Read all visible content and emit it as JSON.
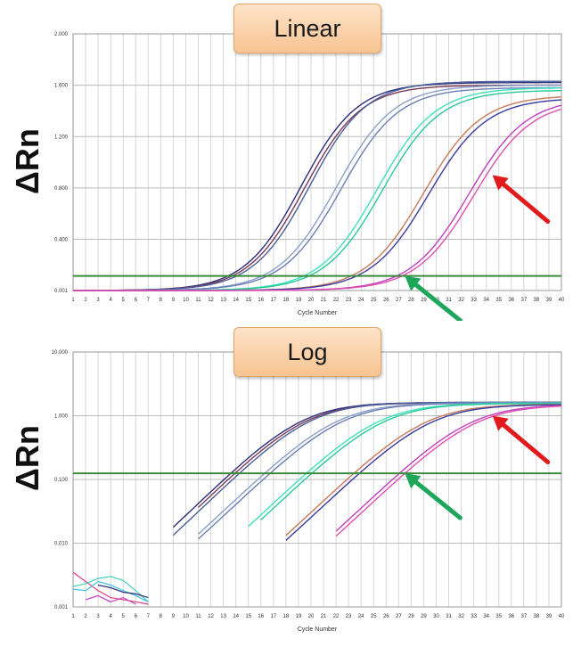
{
  "chart_data": [
    {
      "type": "line",
      "title": "Linear",
      "ylabel": "ΔRn",
      "xlabel": "Cycle Number",
      "yscale": "linear",
      "ylim": [
        0.001,
        2.0
      ],
      "xlim": [
        1,
        40
      ],
      "ytick_labels": [
        "0.001",
        "0.400",
        "0.800",
        "1.200",
        "1.600",
        "2.000"
      ],
      "ytick_values": [
        0.001,
        0.4,
        0.8,
        1.2,
        1.6,
        2.0
      ],
      "xticks": [
        1,
        2,
        3,
        4,
        5,
        6,
        7,
        8,
        9,
        10,
        11,
        12,
        13,
        14,
        15,
        16,
        17,
        18,
        19,
        20,
        21,
        22,
        23,
        24,
        25,
        26,
        27,
        28,
        29,
        30,
        31,
        32,
        33,
        34,
        35,
        36,
        37,
        38,
        39,
        40
      ],
      "grid": true,
      "threshold": 0.115,
      "annotations": [
        {
          "type": "arrow",
          "color": "#e11b1b",
          "target_cycle": 34.5,
          "target_value": 0.9
        },
        {
          "type": "arrow",
          "color": "#1ea65a",
          "target_cycle": 27.5,
          "target_value": 0.115
        }
      ],
      "series": [
        {
          "color": "#2b2f7a",
          "midpoint": 19.2,
          "max": 1.62,
          "slope": 2.25
        },
        {
          "color": "#7a3a55",
          "midpoint": 19.5,
          "max": 1.6,
          "slope": 2.25
        },
        {
          "color": "#4a5f9a",
          "midpoint": 19.9,
          "max": 1.63,
          "slope": 2.25
        },
        {
          "color": "#8aa0c8",
          "midpoint": 22.0,
          "max": 1.6,
          "slope": 2.3
        },
        {
          "color": "#6a7fb5",
          "midpoint": 22.4,
          "max": 1.58,
          "slope": 2.3
        },
        {
          "color": "#40e0c0",
          "midpoint": 25.3,
          "max": 1.58,
          "slope": 2.3
        },
        {
          "color": "#2bc99a",
          "midpoint": 25.7,
          "max": 1.56,
          "slope": 2.3
        },
        {
          "color": "#c87a5a",
          "midpoint": 29.0,
          "max": 1.52,
          "slope": 2.3
        },
        {
          "color": "#3a3aa0",
          "midpoint": 29.4,
          "max": 1.5,
          "slope": 2.3
        },
        {
          "color": "#c040c0",
          "midpoint": 32.6,
          "max": 1.5,
          "slope": 2.3
        },
        {
          "color": "#e050b0",
          "midpoint": 33.0,
          "max": 1.48,
          "slope": 2.3
        }
      ]
    },
    {
      "type": "line",
      "title": "Log",
      "ylabel": "ΔRn",
      "xlabel": "Cycle Number",
      "yscale": "log",
      "ylim": [
        0.001,
        10.0
      ],
      "xlim": [
        1,
        40
      ],
      "ytick_labels": [
        "0.001",
        "0.010",
        "0.100",
        "1.000",
        "10.000"
      ],
      "ytick_values": [
        0.001,
        0.01,
        0.1,
        1.0,
        10.0
      ],
      "xticks": [
        1,
        2,
        3,
        4,
        5,
        6,
        7,
        8,
        9,
        10,
        11,
        12,
        13,
        14,
        15,
        16,
        17,
        18,
        19,
        20,
        21,
        22,
        23,
        24,
        25,
        26,
        27,
        28,
        29,
        30,
        31,
        32,
        33,
        34,
        35,
        36,
        37,
        38,
        39,
        40
      ],
      "grid": true,
      "threshold": 0.125,
      "annotations": [
        {
          "type": "arrow",
          "color": "#e11b1b",
          "target_cycle": 34.5,
          "target_value": 1.0
        },
        {
          "type": "arrow",
          "color": "#1ea65a",
          "target_cycle": 27.5,
          "target_value": 0.125
        }
      ],
      "noise": [
        {
          "color": "#e04080",
          "x": [
            1,
            2,
            3,
            4,
            5,
            6,
            7
          ],
          "y": [
            0.0035,
            0.0025,
            0.0018,
            0.0014,
            0.0013,
            0.0012,
            0.0011
          ]
        },
        {
          "color": "#40d0c0",
          "x": [
            1,
            2,
            3,
            4,
            5,
            6,
            7
          ],
          "y": [
            0.0021,
            0.0023,
            0.0028,
            0.003,
            0.0026,
            0.0018,
            0.0012
          ]
        },
        {
          "color": "#40c0e0",
          "x": [
            1,
            2,
            3,
            4,
            5,
            6,
            7
          ],
          "y": [
            0.0019,
            0.0018,
            0.0025,
            0.0022,
            0.0018,
            0.0015,
            0.0012
          ]
        },
        {
          "color": "#2b2f7a",
          "x": [
            3,
            4,
            5,
            6,
            7
          ],
          "y": [
            0.0022,
            0.002,
            0.0017,
            0.0016,
            0.0014
          ]
        },
        {
          "color": "#c040c0",
          "x": [
            2,
            3,
            4,
            5,
            6
          ],
          "y": [
            0.0013,
            0.0015,
            0.0012,
            0.0014,
            0.0011
          ]
        }
      ],
      "series": [
        {
          "color": "#2b2f7a",
          "start": 9,
          "midpoint": 19.2,
          "max": 1.62,
          "slope": 2.25
        },
        {
          "color": "#7a3a55",
          "start": 11,
          "midpoint": 19.5,
          "max": 1.6,
          "slope": 2.25
        },
        {
          "color": "#4a5f9a",
          "start": 9,
          "midpoint": 19.9,
          "max": 1.63,
          "slope": 2.25
        },
        {
          "color": "#8aa0c8",
          "start": 11,
          "midpoint": 22.0,
          "max": 1.6,
          "slope": 2.3
        },
        {
          "color": "#6a7fb5",
          "start": 11,
          "midpoint": 22.4,
          "max": 1.58,
          "slope": 2.3
        },
        {
          "color": "#40e0c0",
          "start": 15,
          "midpoint": 25.3,
          "max": 1.58,
          "slope": 2.3
        },
        {
          "color": "#2bc99a",
          "start": 16,
          "midpoint": 25.7,
          "max": 1.56,
          "slope": 2.3
        },
        {
          "color": "#c87a5a",
          "start": 18,
          "midpoint": 29.0,
          "max": 1.52,
          "slope": 2.3
        },
        {
          "color": "#3a3aa0",
          "start": 18,
          "midpoint": 29.4,
          "max": 1.5,
          "slope": 2.3
        },
        {
          "color": "#c040c0",
          "start": 22,
          "midpoint": 32.6,
          "max": 1.5,
          "slope": 2.3
        },
        {
          "color": "#e050b0",
          "start": 22,
          "midpoint": 33.0,
          "max": 1.48,
          "slope": 2.3
        }
      ]
    }
  ]
}
